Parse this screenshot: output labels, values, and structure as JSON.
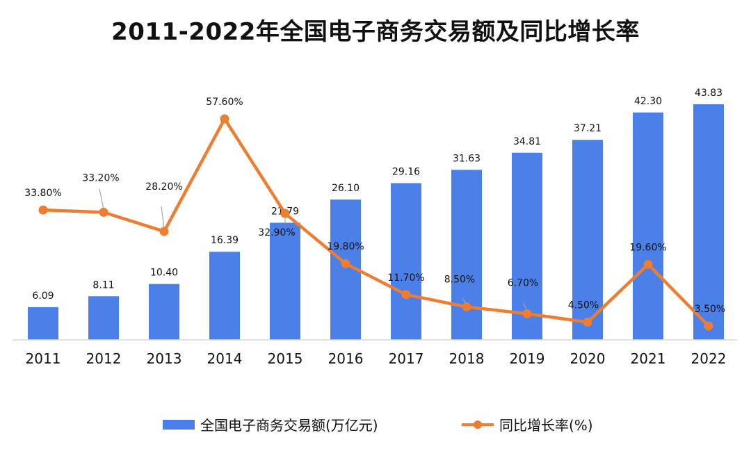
{
  "chart_data": {
    "type": "bar",
    "title": "2011-2022年全国电子商务交易额及同比增长率",
    "categories": [
      "2011",
      "2012",
      "2013",
      "2014",
      "2015",
      "2016",
      "2017",
      "2018",
      "2019",
      "2020",
      "2021",
      "2022"
    ],
    "series": [
      {
        "name": "全国电子商务交易额(万亿元)",
        "type": "bar",
        "color": "#4a80e8",
        "values": [
          6.09,
          8.11,
          10.4,
          16.39,
          21.79,
          26.1,
          29.16,
          31.63,
          34.81,
          37.21,
          42.3,
          43.83
        ],
        "labels": [
          "6.09",
          "8.11",
          "10.40",
          "16.39",
          "21.79",
          "26.10",
          "29.16",
          "31.63",
          "34.81",
          "37.21",
          "42.30",
          "43.83"
        ]
      },
      {
        "name": "同比增长率(%)",
        "type": "line",
        "color": "#ed7d31",
        "values": [
          33.8,
          33.2,
          28.2,
          57.6,
          32.9,
          19.8,
          11.7,
          8.5,
          6.7,
          4.5,
          19.6,
          3.5
        ],
        "labels": [
          "33.80%",
          "33.20%",
          "28.20%",
          "57.60%",
          "32.90%",
          "19.80%",
          "11.70%",
          "8.50%",
          "6.70%",
          "4.50%",
          "19.60%",
          "3.50%"
        ]
      }
    ],
    "ylim_bar": [
      0,
      47
    ],
    "ylim_line": [
      0,
      60
    ],
    "grid": false,
    "legend_position": "bottom"
  }
}
